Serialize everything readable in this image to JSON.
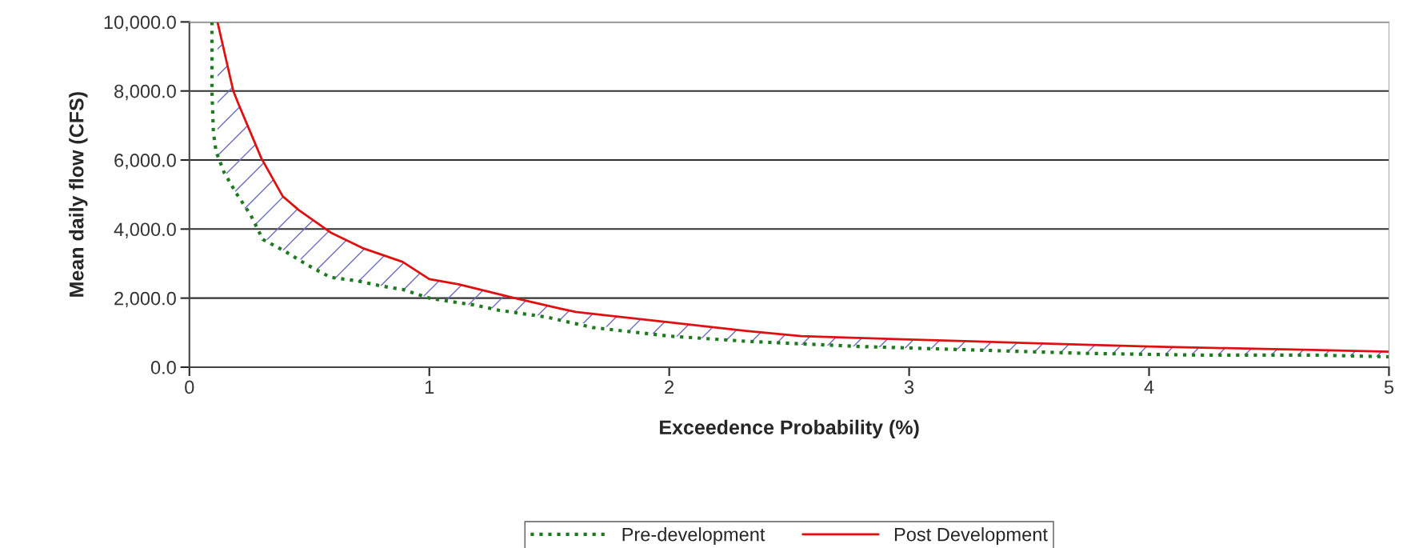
{
  "chart_data": {
    "type": "line",
    "xlabel": "Exceedence Probability (%)",
    "ylabel": "Mean daily flow (CFS)",
    "xlim": [
      0,
      5
    ],
    "xticks": [
      0,
      1,
      2,
      3,
      4,
      5
    ],
    "ylim": [
      0,
      10000
    ],
    "yticks": [
      {
        "value": 0,
        "label": "0.0"
      },
      {
        "value": 2000,
        "label": "2,000.0"
      },
      {
        "value": 4000,
        "label": "4,000.0"
      },
      {
        "value": 6000,
        "label": "6,000.0"
      },
      {
        "value": 8000,
        "label": "8,000.0"
      },
      {
        "value": 10000,
        "label": "10,000.0"
      }
    ],
    "grid": "y",
    "legend": "bottom",
    "series": [
      {
        "name": "Pre-development",
        "color": "#1e7a1e",
        "line_style": "dotted",
        "x": [
          0.094,
          0.094,
          0.1,
          0.111,
          0.144,
          0.194,
          0.256,
          0.306,
          0.4,
          0.494,
          0.589,
          0.7,
          0.8,
          0.889,
          1.0,
          1.089,
          1.189,
          1.289,
          1.389,
          1.489,
          1.68,
          2.0,
          2.32,
          2.79,
          3.26,
          3.73,
          4.2,
          4.68,
          5.0
        ],
        "values": [
          10000,
          8000,
          6800,
          6250,
          5650,
          5050,
          4400,
          3700,
          3350,
          2950,
          2600,
          2500,
          2350,
          2250,
          2000,
          1900,
          1800,
          1650,
          1550,
          1450,
          1150,
          900,
          750,
          600,
          500,
          400,
          350,
          350,
          300
        ]
      },
      {
        "name": "Post Development",
        "color": "#e01010",
        "line_style": "solid",
        "x": [
          0.117,
          0.183,
          0.206,
          0.3,
          0.389,
          0.456,
          0.589,
          0.722,
          0.889,
          1.0,
          1.122,
          1.356,
          1.544,
          1.61,
          2.0,
          2.32,
          2.55,
          3.0,
          3.26,
          3.73,
          4.0,
          4.32,
          4.68,
          5.0
        ],
        "values": [
          10000,
          8000,
          7600,
          6050,
          4950,
          4550,
          3900,
          3450,
          3050,
          2550,
          2400,
          2000,
          1700,
          1600,
          1300,
          1050,
          900,
          800,
          750,
          650,
          600,
          550,
          500,
          450
        ],
        "lower": [
          6150,
          5200,
          4900,
          3800,
          3400,
          3150,
          2600,
          2450,
          2250,
          2000,
          1850,
          1600,
          1400,
          1300,
          900,
          750,
          650,
          550,
          500,
          400,
          400,
          350,
          350,
          300
        ],
        "upper": [
          10000,
          8000,
          7600,
          6050,
          4950,
          4550,
          3900,
          3450,
          3050,
          2550,
          2400,
          2000,
          1700,
          1600,
          1300,
          1050,
          900,
          800,
          750,
          650,
          600,
          550,
          500,
          450
        ]
      }
    ]
  }
}
